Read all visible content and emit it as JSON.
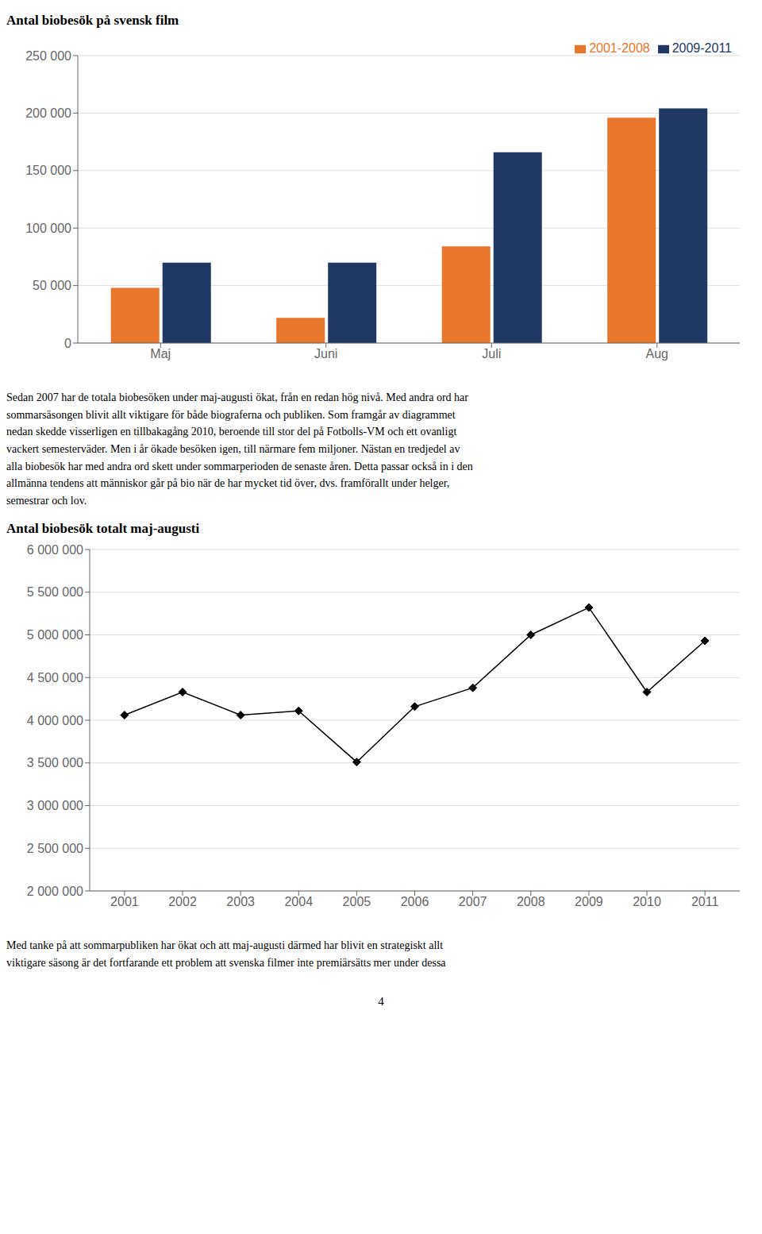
{
  "chart_data": [
    {
      "type": "bar",
      "title": "Antal biobesök på svensk film",
      "categories": [
        "Maj",
        "Juni",
        "Juli",
        "Aug"
      ],
      "series": [
        {
          "name": "2001-2008",
          "color": "#E8762B",
          "values": [
            48000,
            22000,
            84000,
            196000
          ]
        },
        {
          "name": "2009-2011",
          "color": "#1F3864",
          "values": [
            70000,
            70000,
            166000,
            204000
          ]
        }
      ],
      "ylim": [
        0,
        250000
      ],
      "yticks": [
        0,
        {
          "value": 50000,
          "label": "50 000"
        },
        {
          "value": 100000,
          "label": "100 000"
        },
        {
          "value": 150000,
          "label": "150 000"
        },
        {
          "value": 200000,
          "label": "200 000"
        },
        {
          "value": 250000,
          "label": "250 000"
        }
      ],
      "grid": true,
      "legend": "upper right",
      "annotations": [
        "Sedan 2007 har de totala biobesöken under maj-augusti ökat, från en redan hög nivå. Med andra ord har\nsommarsäsongen blivit allt viktigare för både biograferna och publiken. Som framgår av diagrammet\nnedan skedde visserligen en tillbakagång 2010, beroende till stor del på Fotbolls-VM och ett ovanligt\nvackert semesterväder. Men i år ökade besöken igen, till närmare fem miljoner. Nästan en tredjedel av\nalla biobesök har med andra ord skett under sommarperioden de senaste åren. Detta passar också in i den\nallmänna tendens att människor går på bio när de har mycket tid över, dvs. framförallt under helger,\nsemestrar och lov."
      ]
    },
    {
      "type": "line",
      "title": "Antal biobesök totalt maj-augusti",
      "x": [
        2001,
        2002,
        2003,
        2004,
        2005,
        2006,
        2007,
        2008,
        2009,
        2010,
        2011
      ],
      "values": [
        4060000,
        4330000,
        4060000,
        4110000,
        3510000,
        4160000,
        4380000,
        5000000,
        5320000,
        4330000,
        4930000
      ],
      "color": "#000000",
      "marker": "diamond",
      "xlim": [
        2000.4,
        2011.6
      ],
      "xticks": [
        2001,
        2002,
        2003,
        2004,
        2005,
        2006,
        2007,
        2008,
        2009,
        2010,
        2011
      ],
      "ylim": [
        2000000,
        6000000
      ],
      "yticks": [
        {
          "value": 2000000,
          "label": "2 000 000"
        },
        {
          "value": 2500000,
          "label": "2 500 000"
        },
        {
          "value": 3000000,
          "label": "3 000 000"
        },
        {
          "value": 3500000,
          "label": "3 500 000"
        },
        {
          "value": 4000000,
          "label": "4 000 000"
        },
        {
          "value": 4500000,
          "label": "4 500 000"
        },
        {
          "value": 5000000,
          "label": "5 000 000"
        },
        {
          "value": 5500000,
          "label": "5 500 000"
        },
        {
          "value": 6000000,
          "label": "6 000 000"
        }
      ],
      "grid": true,
      "annotations": [
        "Med tanke på att sommarpubliken har ökat och att maj-augusti därmed har blivit en strategiskt allt\nviktigare säsong är det fortfarande ett problem att svenska filmer inte premiärsätts mer under dessa",
        "4"
      ]
    }
  ]
}
